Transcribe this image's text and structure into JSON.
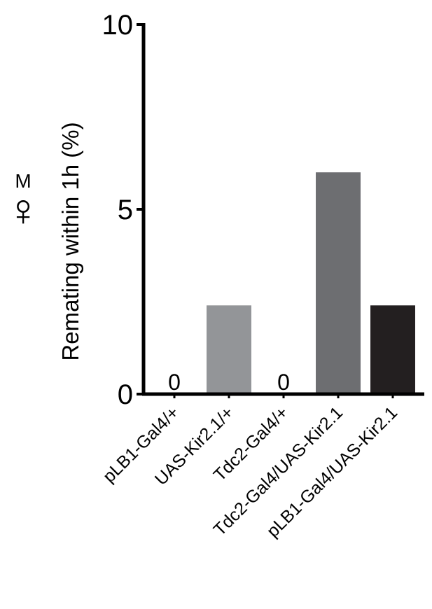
{
  "chart_data": {
    "type": "bar",
    "ylabel": "Remating within 1h (%)",
    "annotations": [
      "M",
      "♀"
    ],
    "categories": [
      "pLB1-Gal4/+",
      "UAS-Kir2.1/+",
      "Tdc2-Gal4/+",
      "Tdc2-Gal4/UAS-Kir2.1",
      "pLB1-Gal4/UAS-Kir2.1"
    ],
    "values": [
      0,
      2.4,
      0,
      6.0,
      2.4
    ],
    "value_labels": [
      "0",
      null,
      "0",
      null,
      null
    ],
    "colors": [
      "#939598",
      "#939598",
      "#939598",
      "#6d6e71",
      "#231f20"
    ],
    "ylim": [
      0,
      10
    ],
    "yticks": [
      0,
      5,
      10
    ],
    "grid": false
  }
}
